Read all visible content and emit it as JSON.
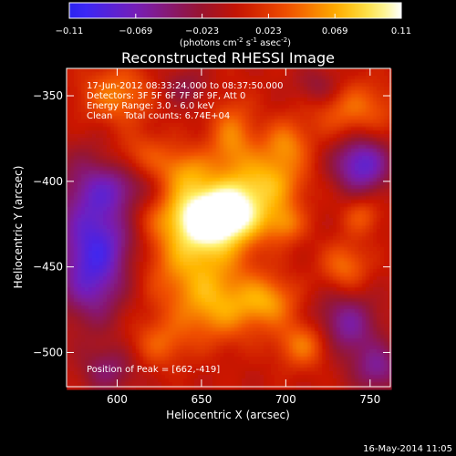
{
  "chart_data": {
    "type": "heatmap",
    "title": "Reconstructed RHESSI Image",
    "xlabel": "Heliocentric X (arcsec)",
    "ylabel": "Heliocentric Y (arcsec)",
    "xlim": [
      570,
      762
    ],
    "ylim": [
      -520,
      -334
    ],
    "xticks": [
      600,
      650,
      700,
      750
    ],
    "yticks": [
      -350,
      -400,
      -450,
      -500
    ],
    "colorbar": {
      "ticks": [
        "-0.11",
        "-0.069",
        "-0.023",
        "0.023",
        "0.069",
        "0.11"
      ],
      "min": -0.11,
      "max": 0.11,
      "unit_line_parts": [
        "(photons cm",
        "-2",
        " s",
        "-1",
        " asec",
        "-2",
        ")"
      ]
    },
    "info_lines": [
      "17-Jun-2012 08:33:24.000 to 08:37:50.000",
      "Detectors: 3F 5F 6F 7F 8F 9F, Att 0",
      "Energy Range: 3.0 - 6.0 keV",
      "Clean    Total counts: 6.74E+04"
    ],
    "peak_label": "Position of Peak = [662,-419]",
    "peak": {
      "x": 662,
      "y": -419,
      "value": 0.11
    },
    "blobs": [
      {
        "x": 662,
        "y": -419,
        "sx": 18,
        "sy": 12,
        "amp": 0.12
      },
      {
        "x": 645,
        "y": -440,
        "sx": 22,
        "sy": 22,
        "amp": 0.07
      },
      {
        "x": 690,
        "y": -400,
        "sx": 15,
        "sy": 12,
        "amp": 0.06
      },
      {
        "x": 700,
        "y": -378,
        "sx": 10,
        "sy": 10,
        "amp": 0.045
      },
      {
        "x": 668,
        "y": -375,
        "sx": 10,
        "sy": 16,
        "amp": 0.05
      },
      {
        "x": 640,
        "y": -395,
        "sx": 12,
        "sy": 10,
        "amp": 0.05
      },
      {
        "x": 612,
        "y": -385,
        "sx": 14,
        "sy": 10,
        "amp": 0.045
      },
      {
        "x": 610,
        "y": -420,
        "sx": 18,
        "sy": 10,
        "amp": 0.04
      },
      {
        "x": 600,
        "y": -350,
        "sx": 15,
        "sy": 12,
        "amp": 0.05
      },
      {
        "x": 740,
        "y": -358,
        "sx": 18,
        "sy": 12,
        "amp": 0.045
      },
      {
        "x": 690,
        "y": -470,
        "sx": 12,
        "sy": 10,
        "amp": 0.05
      },
      {
        "x": 660,
        "y": -475,
        "sx": 18,
        "sy": 14,
        "amp": 0.05
      },
      {
        "x": 712,
        "y": -495,
        "sx": 12,
        "sy": 10,
        "amp": 0.055
      },
      {
        "x": 735,
        "y": -450,
        "sx": 10,
        "sy": 10,
        "amp": 0.045
      },
      {
        "x": 745,
        "y": -420,
        "sx": 8,
        "sy": 8,
        "amp": 0.035
      },
      {
        "x": 625,
        "y": -495,
        "sx": 12,
        "sy": 10,
        "amp": 0.035
      },
      {
        "x": 700,
        "y": -425,
        "sx": 8,
        "sy": 8,
        "amp": 0.04
      },
      {
        "x": 595,
        "y": -415,
        "sx": 20,
        "sy": 22,
        "amp": -0.09
      },
      {
        "x": 585,
        "y": -455,
        "sx": 14,
        "sy": 20,
        "amp": -0.07
      },
      {
        "x": 745,
        "y": -390,
        "sx": 12,
        "sy": 12,
        "amp": -0.08
      },
      {
        "x": 735,
        "y": -485,
        "sx": 14,
        "sy": 14,
        "amp": -0.06
      },
      {
        "x": 755,
        "y": -510,
        "sx": 10,
        "sy": 10,
        "amp": -0.05
      },
      {
        "x": 595,
        "y": -510,
        "sx": 12,
        "sy": 10,
        "amp": -0.04
      },
      {
        "x": 640,
        "y": -345,
        "sx": 10,
        "sy": 8,
        "amp": -0.03
      },
      {
        "x": 720,
        "y": -345,
        "sx": 10,
        "sy": 8,
        "amp": -0.035
      }
    ]
  },
  "footer": {
    "timestamp": "16-May-2014 11:05"
  }
}
